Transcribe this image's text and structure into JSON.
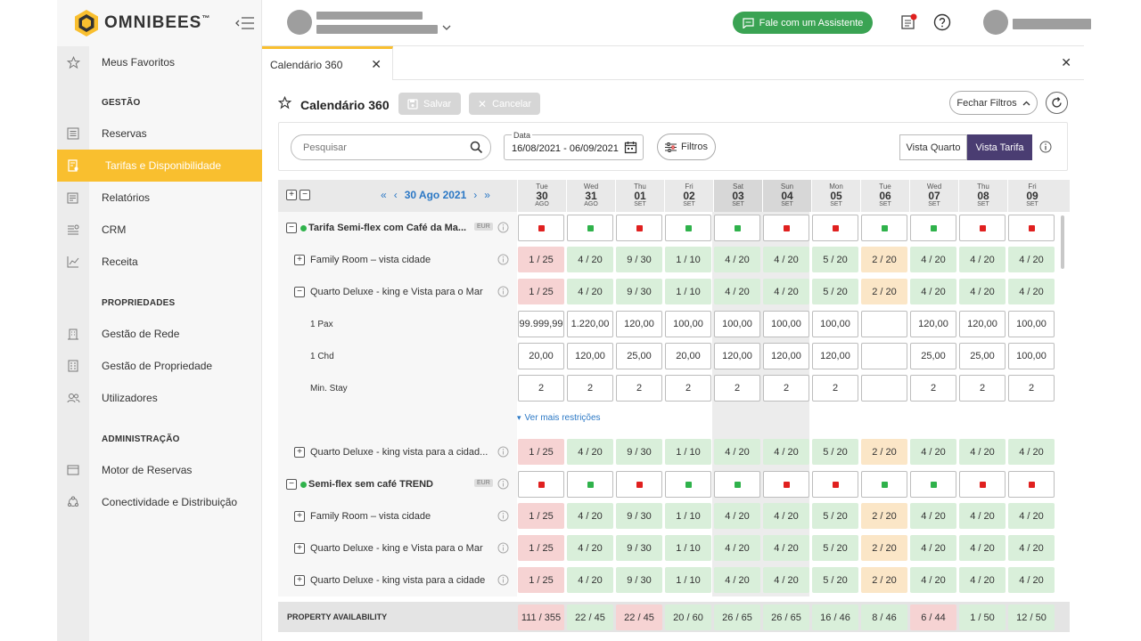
{
  "brand": {
    "name": "OMNIBEES",
    "tm": "™"
  },
  "sidebar": {
    "items": [
      {
        "label": "Meus Favoritos",
        "icon": "star-icon"
      },
      {
        "label": "Reservas",
        "icon": "list-icon"
      },
      {
        "label": "Tarifas e Disponibilidade",
        "icon": "tariff-icon",
        "active": true
      },
      {
        "label": "Relatórios",
        "icon": "report-icon"
      },
      {
        "label": "CRM",
        "icon": "crm-icon"
      },
      {
        "label": "Receita",
        "icon": "chart-line-icon"
      },
      {
        "label": "Gestão de Rede",
        "icon": "building-icon"
      },
      {
        "label": "Gestão de Propriedade",
        "icon": "property-icon"
      },
      {
        "label": "Utilizadores",
        "icon": "users-icon"
      },
      {
        "label": "Motor de Reservas",
        "icon": "window-icon"
      },
      {
        "label": "Conectividade e Distribuição",
        "icon": "connectivity-icon"
      }
    ],
    "sections": {
      "gestao": "GESTÃO",
      "propriedades": "PROPRIEDADES",
      "administracao": "ADMINISTRAÇÃO"
    }
  },
  "topbar": {
    "assist_label": "Fale com um Assistente"
  },
  "tab": {
    "label": "Calendário 360"
  },
  "toolbar": {
    "title": "Calendário 360",
    "save_label": "Salvar",
    "cancel_label": "Cancelar",
    "close_filters_label": "Fechar Filtros"
  },
  "filters": {
    "search_placeholder": "Pesquisar",
    "date_label": "Data",
    "date_value": "16/08/2021 - 06/09/2021",
    "filters_label": "Filtros",
    "view_room": "Vista Quarto",
    "view_rate": "Vista Tarifa"
  },
  "grid": {
    "current_date": "30 Ago 2021",
    "days": [
      {
        "name": "Tue",
        "num": "30",
        "month": "AGO",
        "weekend": false
      },
      {
        "name": "Wed",
        "num": "31",
        "month": "AGO",
        "weekend": false
      },
      {
        "name": "Thu",
        "num": "01",
        "month": "SET",
        "weekend": false
      },
      {
        "name": "Fri",
        "num": "02",
        "month": "SET",
        "weekend": false
      },
      {
        "name": "Sat",
        "num": "03",
        "month": "SET",
        "weekend": true
      },
      {
        "name": "Sun",
        "num": "04",
        "month": "SET",
        "weekend": true
      },
      {
        "name": "Mon",
        "num": "05",
        "month": "SET",
        "weekend": false
      },
      {
        "name": "Tue",
        "num": "06",
        "month": "SET",
        "weekend": false
      },
      {
        "name": "Wed",
        "num": "07",
        "month": "SET",
        "weekend": false
      },
      {
        "name": "Thu",
        "num": "08",
        "month": "SET",
        "weekend": false
      },
      {
        "name": "Fri",
        "num": "09",
        "month": "SET",
        "weekend": false
      }
    ],
    "colors": {
      "open": "#2fb24b",
      "closed": "#e0201f"
    },
    "see_more_label": "Ver mais restrições",
    "property_label": "PROPERTY AVAILABILITY",
    "rows": [
      {
        "type": "rate",
        "label": "Tarifa Semi-flex com Café da Ma...",
        "currency": "EUR",
        "status": [
          "closed",
          "open",
          "closed",
          "open",
          "open",
          "closed",
          "closed",
          "open",
          "open",
          "closed",
          "closed"
        ]
      },
      {
        "type": "room",
        "label": "Family Room – vista cidade",
        "expanded": false,
        "avail": [
          "1 / 25",
          "4 / 20",
          "9 / 30",
          "1 / 10",
          "4 / 20",
          "4 / 20",
          "5 / 20",
          "2 / 20",
          "4 / 20",
          "4 / 20",
          "4 / 20"
        ]
      },
      {
        "type": "room",
        "label": "Quarto Deluxe - king e Vista para o Mar",
        "expanded": true,
        "avail": [
          "1 / 25",
          "4 / 20",
          "9 / 30",
          "1 / 10",
          "4 / 20",
          "4 / 20",
          "5 / 20",
          "2 / 20",
          "4 / 20",
          "4 / 20",
          "4 / 20"
        ]
      },
      {
        "type": "sub",
        "label": "1 Pax",
        "values": [
          "99.999,99",
          "1.220,00",
          "120,00",
          "100,00",
          "100,00",
          "100,00",
          "100,00",
          "",
          "120,00",
          "120,00",
          "100,00"
        ]
      },
      {
        "type": "sub",
        "label": "1 Chd",
        "values": [
          "20,00",
          "120,00",
          "25,00",
          "20,00",
          "120,00",
          "120,00",
          "120,00",
          "",
          "25,00",
          "25,00",
          "100,00"
        ]
      },
      {
        "type": "sub",
        "label": "Min. Stay",
        "values": [
          "2",
          "2",
          "2",
          "2",
          "2",
          "2",
          "2",
          "",
          "2",
          "2",
          "2"
        ]
      },
      {
        "type": "more"
      },
      {
        "type": "room",
        "label": "Quarto Deluxe - king vista para a cidad...",
        "expanded": false,
        "avail": [
          "1 / 25",
          "4 / 20",
          "9 / 30",
          "1 / 10",
          "4 / 20",
          "4 / 20",
          "5 / 20",
          "2 / 20",
          "4 / 20",
          "4 / 20",
          "4 / 20"
        ]
      },
      {
        "type": "rate",
        "label": "Semi-flex sem café TREND",
        "currency": "EUR",
        "status": [
          "closed",
          "open",
          "closed",
          "open",
          "open",
          "closed",
          "closed",
          "open",
          "open",
          "closed",
          "closed"
        ]
      },
      {
        "type": "room",
        "label": "Family Room – vista cidade",
        "expanded": false,
        "avail": [
          "1 / 25",
          "4 / 20",
          "9 / 30",
          "1 / 10",
          "4 / 20",
          "4 / 20",
          "5 / 20",
          "2 / 20",
          "4 / 20",
          "4 / 20",
          "4 / 20"
        ]
      },
      {
        "type": "room",
        "label": "Quarto Deluxe - king e Vista para o Mar",
        "expanded": false,
        "avail": [
          "1 / 25",
          "4 / 20",
          "9 / 30",
          "1 / 10",
          "4 / 20",
          "4 / 20",
          "5 / 20",
          "2 / 20",
          "4 / 20",
          "4 / 20",
          "4 / 20"
        ]
      },
      {
        "type": "room",
        "label": "Quarto Deluxe - king vista para a cidade",
        "expanded": false,
        "avail": [
          "1 / 25",
          "4 / 20",
          "9 / 30",
          "1 / 10",
          "4 / 20",
          "4 / 20",
          "5 / 20",
          "2 / 20",
          "4 / 20",
          "4 / 20",
          "4 / 20"
        ]
      }
    ],
    "avail_styles": [
      "red",
      "green",
      "green",
      "green",
      "green",
      "green",
      "green",
      "orange",
      "green",
      "green",
      "green"
    ],
    "property_availability": [
      "111 / 355",
      "22 / 45",
      "22 / 45",
      "20 / 60",
      "26 / 65",
      "26 / 65",
      "16 / 46",
      "8 / 46",
      "6 / 44",
      "1 / 50",
      "12 / 50"
    ],
    "property_styles": [
      "red",
      "green",
      "red",
      "green",
      "green",
      "green",
      "green",
      "green",
      "red",
      "green",
      "green"
    ]
  }
}
